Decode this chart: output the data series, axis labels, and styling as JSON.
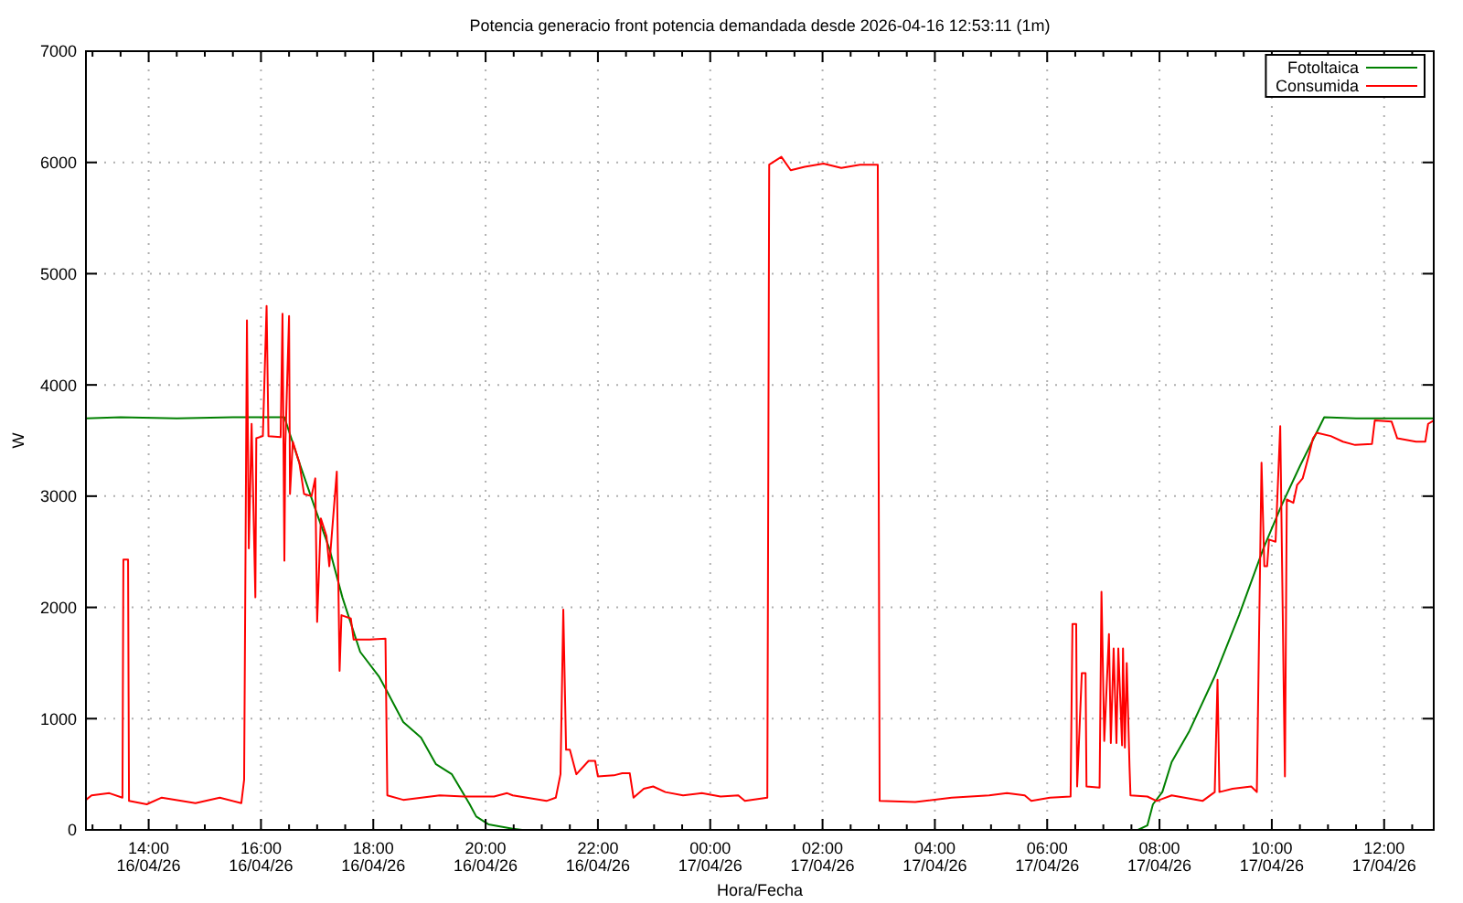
{
  "chart_data": {
    "type": "line",
    "title": "Potencia generacio front potencia demandada desde 2026-04-16 12:53:11 (1m)",
    "xlabel": "Hora/Fecha",
    "ylabel": "W",
    "xlim": [
      "2026-04-16T12:53",
      "2026-04-17T12:53"
    ],
    "xticks": [
      {
        "value": "2026-04-16T13:00",
        "label": null
      },
      {
        "value": "2026-04-16T13:30",
        "label": null
      },
      {
        "value": "2026-04-16T14:00",
        "label": "14:00\n16/04/26"
      },
      {
        "value": "2026-04-16T14:30",
        "label": null
      },
      {
        "value": "2026-04-16T15:00",
        "label": null
      },
      {
        "value": "2026-04-16T15:30",
        "label": null
      },
      {
        "value": "2026-04-16T16:00",
        "label": "16:00\n16/04/26"
      },
      {
        "value": "2026-04-16T16:30",
        "label": null
      },
      {
        "value": "2026-04-16T17:00",
        "label": null
      },
      {
        "value": "2026-04-16T17:30",
        "label": null
      },
      {
        "value": "2026-04-16T18:00",
        "label": "18:00\n16/04/26"
      },
      {
        "value": "2026-04-16T18:30",
        "label": null
      },
      {
        "value": "2026-04-16T19:00",
        "label": null
      },
      {
        "value": "2026-04-16T19:30",
        "label": null
      },
      {
        "value": "2026-04-16T20:00",
        "label": "20:00\n16/04/26"
      },
      {
        "value": "2026-04-16T20:30",
        "label": null
      },
      {
        "value": "2026-04-16T21:00",
        "label": null
      },
      {
        "value": "2026-04-16T21:30",
        "label": null
      },
      {
        "value": "2026-04-16T22:00",
        "label": "22:00\n16/04/26"
      },
      {
        "value": "2026-04-16T22:30",
        "label": null
      },
      {
        "value": "2026-04-16T23:00",
        "label": null
      },
      {
        "value": "2026-04-16T23:30",
        "label": null
      },
      {
        "value": "2026-04-17T00:00",
        "label": "00:00\n17/04/26"
      },
      {
        "value": "2026-04-17T00:30",
        "label": null
      },
      {
        "value": "2026-04-17T01:00",
        "label": null
      },
      {
        "value": "2026-04-17T01:30",
        "label": null
      },
      {
        "value": "2026-04-17T02:00",
        "label": "02:00\n17/04/26"
      },
      {
        "value": "2026-04-17T02:30",
        "label": null
      },
      {
        "value": "2026-04-17T03:00",
        "label": null
      },
      {
        "value": "2026-04-17T03:30",
        "label": null
      },
      {
        "value": "2026-04-17T04:00",
        "label": "04:00\n17/04/26"
      },
      {
        "value": "2026-04-17T04:30",
        "label": null
      },
      {
        "value": "2026-04-17T05:00",
        "label": null
      },
      {
        "value": "2026-04-17T05:30",
        "label": null
      },
      {
        "value": "2026-04-17T06:00",
        "label": "06:00\n17/04/26"
      },
      {
        "value": "2026-04-17T06:30",
        "label": null
      },
      {
        "value": "2026-04-17T07:00",
        "label": null
      },
      {
        "value": "2026-04-17T07:30",
        "label": null
      },
      {
        "value": "2026-04-17T08:00",
        "label": "08:00\n17/04/26"
      },
      {
        "value": "2026-04-17T08:30",
        "label": null
      },
      {
        "value": "2026-04-17T09:00",
        "label": null
      },
      {
        "value": "2026-04-17T09:30",
        "label": null
      },
      {
        "value": "2026-04-17T10:00",
        "label": "10:00\n17/04/26"
      },
      {
        "value": "2026-04-17T10:30",
        "label": null
      },
      {
        "value": "2026-04-17T11:00",
        "label": null
      },
      {
        "value": "2026-04-17T11:30",
        "label": null
      },
      {
        "value": "2026-04-17T12:00",
        "label": "12:00\n17/04/26"
      },
      {
        "value": "2026-04-17T12:30",
        "label": null
      }
    ],
    "ylim": [
      0,
      7000
    ],
    "yticks": [
      0,
      1000,
      2000,
      3000,
      4000,
      5000,
      6000,
      7000
    ],
    "grid": true,
    "legend": "top right",
    "series": [
      {
        "name": "Fotoltaica",
        "color": "#008000",
        "x": [
          "2026-04-16T12:53",
          "2026-04-16T13:30",
          "2026-04-16T14:30",
          "2026-04-16T15:30",
          "2026-04-16T16:25",
          "2026-04-16T16:41",
          "2026-04-16T16:57",
          "2026-04-16T17:13",
          "2026-04-16T17:27",
          "2026-04-16T17:46",
          "2026-04-16T18:06",
          "2026-04-16T18:15",
          "2026-04-16T18:32",
          "2026-04-16T18:51",
          "2026-04-16T19:07",
          "2026-04-16T19:24",
          "2026-04-16T19:43",
          "2026-04-16T19:50",
          "2026-04-16T20:03",
          "2026-04-16T20:29",
          "2026-04-16T20:39",
          "2026-04-17T07:37",
          "2026-04-17T07:47",
          "2026-04-17T07:53",
          "2026-04-17T08:03",
          "2026-04-17T08:13",
          "2026-04-17T08:32",
          "2026-04-17T08:59",
          "2026-04-17T09:25",
          "2026-04-17T09:51",
          "2026-04-17T10:10",
          "2026-04-17T10:30",
          "2026-04-17T10:43",
          "2026-04-17T10:56",
          "2026-04-17T11:30",
          "2026-04-17T12:53"
        ],
        "values": [
          3700,
          3710,
          3700,
          3710,
          3710,
          3300,
          2910,
          2530,
          2090,
          1600,
          1380,
          1240,
          970,
          830,
          590,
          500,
          230,
          120,
          50,
          10,
          0,
          0,
          40,
          230,
          340,
          610,
          890,
          1380,
          1930,
          2530,
          2910,
          3270,
          3490,
          3710,
          3700,
          3700
        ]
      },
      {
        "name": "Consumida",
        "color": "#ff0000",
        "x": [
          "2026-04-16T12:53",
          "2026-04-16T12:59",
          "2026-04-16T13:18",
          "2026-04-16T13:32",
          "2026-04-16T13:33",
          "2026-04-16T13:38",
          "2026-04-16T13:39",
          "2026-04-16T13:58",
          "2026-04-16T14:14",
          "2026-04-16T14:50",
          "2026-04-16T15:16",
          "2026-04-16T15:39",
          "2026-04-16T15:42",
          "2026-04-16T15:45",
          "2026-04-16T15:47",
          "2026-04-16T15:50",
          "2026-04-16T15:54",
          "2026-04-16T15:55",
          "2026-04-16T16:02",
          "2026-04-16T16:06",
          "2026-04-16T16:08",
          "2026-04-16T16:21",
          "2026-04-16T16:23",
          "2026-04-16T16:25",
          "2026-04-16T16:26",
          "2026-04-16T16:30",
          "2026-04-16T16:31",
          "2026-04-16T16:34",
          "2026-04-16T16:41",
          "2026-04-16T16:46",
          "2026-04-16T16:54",
          "2026-04-16T16:58",
          "2026-04-16T17:00",
          "2026-04-16T17:04",
          "2026-04-16T17:10",
          "2026-04-16T17:13",
          "2026-04-16T17:21",
          "2026-04-16T17:24",
          "2026-04-16T17:26",
          "2026-04-16T17:36",
          "2026-04-16T17:39",
          "2026-04-16T17:56",
          "2026-04-16T18:13",
          "2026-04-16T18:15",
          "2026-04-16T18:32",
          "2026-04-16T19:11",
          "2026-04-16T19:37",
          "2026-04-16T20:09",
          "2026-04-16T20:23",
          "2026-04-16T20:29",
          "2026-04-16T21:05",
          "2026-04-16T21:15",
          "2026-04-16T21:20",
          "2026-04-16T21:23",
          "2026-04-16T21:26",
          "2026-04-16T21:30",
          "2026-04-16T21:37",
          "2026-04-16T21:50",
          "2026-04-16T21:57",
          "2026-04-16T22:00",
          "2026-04-16T22:17",
          "2026-04-16T22:26",
          "2026-04-16T22:34",
          "2026-04-16T22:38",
          "2026-04-16T22:49",
          "2026-04-16T22:59",
          "2026-04-16T23:12",
          "2026-04-16T23:31",
          "2026-04-16T23:51",
          "2026-04-17T00:11",
          "2026-04-17T00:30",
          "2026-04-17T00:37",
          "2026-04-17T01:01",
          "2026-04-17T01:03",
          "2026-04-17T01:16",
          "2026-04-17T01:26",
          "2026-04-17T01:41",
          "2026-04-17T02:01",
          "2026-04-17T02:20",
          "2026-04-17T02:40",
          "2026-04-17T02:59",
          "2026-04-17T03:01",
          "2026-04-17T03:39",
          "2026-04-17T04:18",
          "2026-04-17T04:58",
          "2026-04-17T05:17",
          "2026-04-17T05:36",
          "2026-04-17T05:43",
          "2026-04-17T06:03",
          "2026-04-17T06:25",
          "2026-04-17T06:27",
          "2026-04-17T06:31",
          "2026-04-17T06:32",
          "2026-04-17T06:37",
          "2026-04-17T06:41",
          "2026-04-17T06:42",
          "2026-04-17T06:56",
          "2026-04-17T06:58",
          "2026-04-17T07:01",
          "2026-04-17T07:06",
          "2026-04-17T07:08",
          "2026-04-17T07:11",
          "2026-04-17T07:14",
          "2026-04-17T07:16",
          "2026-04-17T07:20",
          "2026-04-17T07:21",
          "2026-04-17T07:23",
          "2026-04-17T07:25",
          "2026-04-17T07:28",
          "2026-04-17T07:29",
          "2026-04-17T07:47",
          "2026-04-17T07:57",
          "2026-04-17T08:13",
          "2026-04-17T08:46",
          "2026-04-17T08:59",
          "2026-04-17T09:02",
          "2026-04-17T09:04",
          "2026-04-17T09:18",
          "2026-04-17T09:38",
          "2026-04-17T09:44",
          "2026-04-17T09:49",
          "2026-04-17T09:52",
          "2026-04-17T09:55",
          "2026-04-17T09:57",
          "2026-04-17T10:04",
          "2026-04-17T10:09",
          "2026-04-17T10:14",
          "2026-04-17T10:16",
          "2026-04-17T10:23",
          "2026-04-17T10:27",
          "2026-04-17T10:33",
          "2026-04-17T10:40",
          "2026-04-17T10:44",
          "2026-04-17T10:48",
          "2026-04-17T11:03",
          "2026-04-17T11:16",
          "2026-04-17T11:29",
          "2026-04-17T11:47",
          "2026-04-17T11:50",
          "2026-04-17T12:08",
          "2026-04-17T12:14",
          "2026-04-17T12:34",
          "2026-04-17T12:44",
          "2026-04-17T12:47",
          "2026-04-17T12:53"
        ],
        "values": [
          270,
          310,
          330,
          290,
          2430,
          2430,
          260,
          230,
          290,
          240,
          290,
          240,
          450,
          4580,
          2530,
          3650,
          2090,
          3520,
          3540,
          4710,
          3540,
          3530,
          4640,
          2420,
          3460,
          4620,
          3020,
          3490,
          3300,
          3020,
          3000,
          3160,
          1870,
          2800,
          2640,
          2370,
          3220,
          1430,
          1930,
          1900,
          1710,
          1710,
          1720,
          310,
          270,
          310,
          300,
          300,
          330,
          310,
          260,
          290,
          500,
          1980,
          720,
          720,
          500,
          620,
          620,
          480,
          490,
          510,
          510,
          290,
          370,
          390,
          340,
          310,
          330,
          300,
          310,
          260,
          290,
          5980,
          6050,
          5930,
          5960,
          5990,
          5950,
          5980,
          5980,
          260,
          250,
          290,
          310,
          330,
          310,
          260,
          290,
          300,
          1850,
          1850,
          390,
          1410,
          1410,
          390,
          380,
          2140,
          800,
          1760,
          780,
          1630,
          780,
          1630,
          760,
          1630,
          740,
          1500,
          560,
          310,
          300,
          260,
          310,
          260,
          340,
          1350,
          340,
          370,
          390,
          340,
          3300,
          2370,
          2370,
          2610,
          2590,
          3630,
          480,
          2970,
          2940,
          3100,
          3160,
          3380,
          3520,
          3570,
          3540,
          3490,
          3460,
          3470,
          3680,
          3670,
          3520,
          3490,
          3490,
          3650,
          3680
        ]
      }
    ]
  }
}
